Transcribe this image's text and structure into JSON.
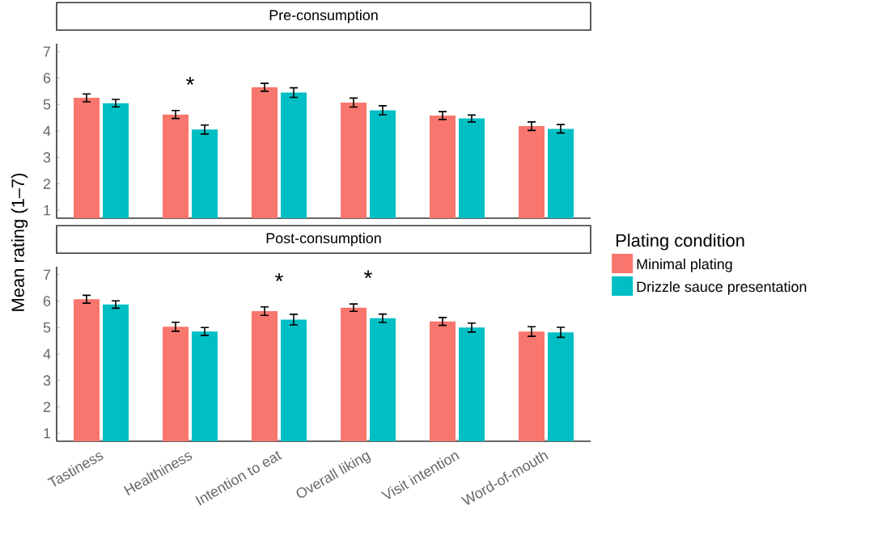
{
  "chart_data": [
    {
      "type": "bar",
      "title": "Pre-consumption",
      "ylabel": "Mean rating (1–7)",
      "legend_title": "Plating condition",
      "legend": "right",
      "tick_labels": "y",
      "categories": [
        null,
        null,
        null,
        null,
        null,
        null
      ],
      "ylim": [
        0.7,
        7.3
      ],
      "yticks": [
        1,
        2,
        3,
        4,
        5,
        6,
        7
      ],
      "series": [
        {
          "name": "Minimal plating",
          "color": "#f8766d",
          "values": [
            5.25,
            4.62,
            5.65,
            5.07,
            4.58,
            4.18
          ],
          "errors": [
            0.15,
            0.15,
            0.15,
            0.17,
            0.15,
            0.16
          ]
        },
        {
          "name": "Drizzle sauce presentation",
          "color": "#00bfc4",
          "values": [
            5.05,
            4.05,
            5.45,
            4.78,
            4.47,
            4.08
          ],
          "errors": [
            0.14,
            0.17,
            0.18,
            0.17,
            0.13,
            0.16
          ]
        }
      ],
      "annotations": [
        "*"
      ]
    },
    {
      "type": "bar",
      "title": "Post-consumption",
      "categories": [
        "Tastiness",
        "Healthiness",
        "Intention to eat",
        "Overall liking",
        "Visit intention",
        "Word-of-mouth"
      ],
      "ylim": [
        0.7,
        7.3
      ],
      "yticks": [
        1,
        2,
        3,
        4,
        5,
        6,
        7
      ],
      "series": [
        {
          "color": "#f8766d",
          "values": [
            6.07,
            5.03,
            5.62,
            5.75,
            5.23,
            4.85
          ],
          "errors": [
            0.15,
            0.17,
            0.16,
            0.14,
            0.15,
            0.18
          ]
        },
        {
          "color": "#00bfc4",
          "values": [
            5.87,
            4.85,
            5.3,
            5.35,
            5.0,
            4.82
          ],
          "errors": [
            0.14,
            0.15,
            0.2,
            0.16,
            0.17,
            0.19
          ]
        }
      ],
      "annotations": [
        "*",
        "*"
      ]
    }
  ]
}
